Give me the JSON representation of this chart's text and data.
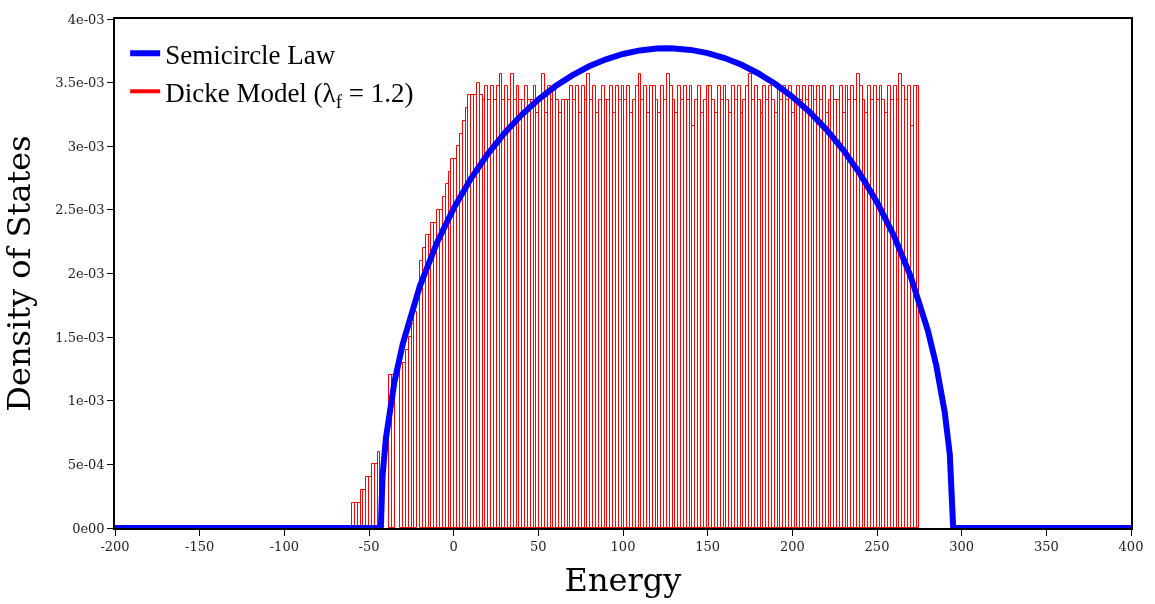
{
  "chart_data": {
    "type": "histogram",
    "xlabel": "Energy",
    "ylabel": "Density of States",
    "xlim": [
      -200,
      400
    ],
    "xticks": [
      -200,
      -150,
      -100,
      -50,
      0,
      50,
      100,
      150,
      200,
      250,
      300,
      350,
      400
    ],
    "ylim": [
      0,
      0.004
    ],
    "yticks": [
      {
        "value": 0,
        "label": "0e00"
      },
      {
        "value": 0.0005,
        "label": "5e-04"
      },
      {
        "value": 0.001,
        "label": "1e-03"
      },
      {
        "value": 0.0015,
        "label": "1.5e-03"
      },
      {
        "value": 0.002,
        "label": "2e-03"
      },
      {
        "value": 0.0025,
        "label": "2.5e-03"
      },
      {
        "value": 0.003,
        "label": "3e-03"
      },
      {
        "value": 0.0035,
        "label": "3.5e-03"
      },
      {
        "value": 0.004,
        "label": "4e-03"
      }
    ],
    "legend": "top left",
    "series": [
      {
        "name": "Dicke Model (λ$_{f}$ = 1.2)",
        "color": "#ff0000",
        "bins": [
          -60,
          -58.325,
          -56.65,
          -54.975,
          -53.3,
          -51.625,
          -49.95,
          -48.275,
          -46.6,
          -44.925,
          -43.25,
          -41.575,
          -39.9,
          -38.225,
          -36.55,
          -34.875,
          -33.2,
          -31.525,
          -29.85,
          -28.175,
          -26.5,
          -24.825,
          -23.15,
          -21.475,
          -19.8,
          -18.125,
          -16.45,
          -14.775,
          -13.1,
          -11.425,
          -9.75,
          -8.075,
          -6.4,
          -4.725,
          -3.05,
          -1.375,
          0.3,
          1.975,
          3.65,
          5.325,
          7,
          8.675,
          10.35,
          12.025,
          13.7,
          15.375,
          17.05,
          18.725,
          20.4,
          22.075,
          23.75,
          25.425,
          27.1,
          28.775,
          30.45,
          32.125,
          33.8,
          35.475,
          37.15,
          38.825,
          40.5,
          42.175,
          43.85,
          45.525,
          47.2,
          48.875,
          50.55,
          52.225,
          53.9,
          55.575,
          57.25,
          58.925,
          60.6,
          62.275,
          63.95,
          65.625,
          67.3,
          68.975,
          70.65,
          72.325,
          74,
          75.675,
          77.35,
          79.025,
          80.7,
          82.375,
          84.05,
          85.725,
          87.4,
          89.075,
          90.75,
          92.425,
          94.1,
          95.775,
          97.45,
          99.125,
          100.8,
          102.475,
          104.15,
          105.825,
          107.5,
          109.175,
          110.85,
          112.525,
          114.2,
          115.875,
          117.55,
          119.225,
          120.9,
          122.575,
          124.25,
          125.925,
          127.6,
          129.275,
          130.95,
          132.625,
          134.3,
          135.975,
          137.65,
          139.325,
          141,
          142.675,
          144.35,
          146.025,
          147.7,
          149.375,
          151.05,
          152.725,
          154.4,
          156.075,
          157.75,
          159.425,
          161.1,
          162.775,
          164.45,
          166.125,
          167.8,
          169.475,
          171.15,
          172.825,
          174.5,
          176.175,
          177.85,
          179.525,
          181.2,
          182.875,
          184.55,
          186.225,
          187.9,
          189.575,
          191.25,
          192.925,
          194.6,
          196.275,
          197.95,
          199.625,
          201.3,
          202.975,
          204.65,
          206.325,
          208,
          209.675,
          211.35,
          213.025,
          214.7,
          216.375,
          218.05,
          219.725,
          221.4,
          223.075,
          224.75,
          226.425,
          228.1,
          229.775,
          231.45,
          233.125,
          234.8,
          236.475,
          238.15,
          239.825,
          241.5,
          243.175,
          244.85,
          246.525,
          248.2,
          249.875,
          251.55,
          253.225,
          254.9,
          256.575,
          258.25,
          259.925,
          261.6,
          263.275,
          264.95,
          266.625,
          268.3,
          269.975,
          271.65,
          273.325,
          275
        ],
        "values": [
          0.0002,
          0.0002,
          0.0002,
          0.0003,
          0.0003,
          0.0004,
          0.0004,
          0.0005,
          0.0005,
          0.0006,
          null,
          null,
          null,
          0.0012,
          0.0012,
          null,
          null,
          0.0013,
          0.0013,
          0.0014,
          0.0015,
          0.0016,
          0.0017,
          null,
          0.0021,
          0.0022,
          0.0023,
          0.0023,
          0.0024,
          0.0024,
          0.0025,
          0.0025,
          0.0026,
          0.0027,
          0.0028,
          0.0029,
          0.0029,
          0.003,
          0.0031,
          0.0032,
          0.0033,
          0.0034,
          0.0034,
          0.0034,
          0.0035,
          0.0034,
          0.00336,
          0.00347,
          0.00336,
          0.00347,
          0.00336,
          0.00347,
          0.00357,
          0.00336,
          0.00347,
          0.00336,
          0.00357,
          0.00336,
          0.00347,
          0.00336,
          0.00336,
          0.00347,
          0.00336,
          0.00336,
          0.00347,
          0.00326,
          0.00336,
          0.00357,
          0.00326,
          0.00347,
          0.00336,
          0.00347,
          0.00336,
          0.00326,
          0.00336,
          0.00336,
          0.00336,
          0.00347,
          0.00336,
          0.00347,
          0.00326,
          0.00347,
          0.00336,
          0.00357,
          0.00336,
          0.00347,
          0.00326,
          0.00336,
          0.00347,
          0.00336,
          0.00336,
          0.00347,
          0.00326,
          0.00347,
          0.00336,
          0.00347,
          0.00336,
          0.00347,
          0.00326,
          0.00336,
          0.00347,
          0.00357,
          0.00336,
          0.00347,
          0.00326,
          0.00347,
          0.00347,
          0.00336,
          0.00326,
          0.00347,
          0.00336,
          0.00357,
          0.00347,
          0.00336,
          0.00326,
          0.00347,
          0.00336,
          0.00347,
          0.00336,
          0.00347,
          0.00316,
          0.00336,
          0.00347,
          0.00326,
          0.00336,
          0.00347,
          0.00347,
          0.00336,
          0.00326,
          0.00347,
          0.00336,
          0.00347,
          0.00336,
          0.00326,
          0.00347,
          0.00336,
          0.00347,
          0.00326,
          0.00336,
          0.00347,
          0.00357,
          0.00336,
          0.00347,
          0.00336,
          0.00326,
          0.00347,
          0.00336,
          0.00347,
          0.00336,
          0.00326,
          0.00347,
          0.00336,
          0.00347,
          0.00336,
          0.00347,
          0.00326,
          0.00336,
          0.00347,
          0.00336,
          0.00347,
          0.00336,
          0.00347,
          0.00347,
          0.00336,
          0.00347,
          0.00336,
          0.00347,
          0.00326,
          0.00336,
          0.00347,
          0.00336,
          0.00336,
          0.00347,
          0.00326,
          0.00347,
          0.00336,
          0.00347,
          0.00336,
          0.00357,
          0.00347,
          0.00336,
          0.00326,
          0.00347,
          0.00336,
          0.00347,
          0.00336,
          0.00347,
          0.00336,
          0.00326,
          0.00347,
          0.00336,
          0.00347,
          0.00336,
          0.00357,
          0.00347,
          0.00336,
          0.00347,
          0.00316,
          0.00347,
          0.00347
        ]
      },
      {
        "name": "Semicircle Law",
        "type": "line",
        "color": "#0000ff",
        "x": [
          -200,
          -43,
          -42,
          -40,
          -35,
          -30,
          -20,
          -10,
          0,
          10,
          20,
          30,
          40,
          50,
          60,
          70,
          80,
          90,
          100,
          110,
          120,
          126,
          130,
          140,
          150,
          160,
          170,
          180,
          190,
          200,
          210,
          220,
          230,
          240,
          250,
          260,
          270,
          280,
          285,
          290,
          293,
          295,
          400
        ],
        "values": [
          0,
          0,
          0.00041,
          0.000707,
          0.001146,
          0.00145,
          0.001899,
          0.002238,
          0.002512,
          0.002742,
          0.002936,
          0.003103,
          0.003245,
          0.003367,
          0.003471,
          0.003557,
          0.003628,
          0.003683,
          0.003725,
          0.003753,
          0.003768,
          0.00377,
          0.003769,
          0.003757,
          0.003732,
          0.003693,
          0.00364,
          0.003572,
          0.003489,
          0.003389,
          0.003271,
          0.003133,
          0.002972,
          0.002783,
          0.002561,
          0.002297,
          0.001973,
          0.001553,
          0.001278,
          0.00091,
          0.000578,
          0,
          0
        ]
      }
    ]
  }
}
